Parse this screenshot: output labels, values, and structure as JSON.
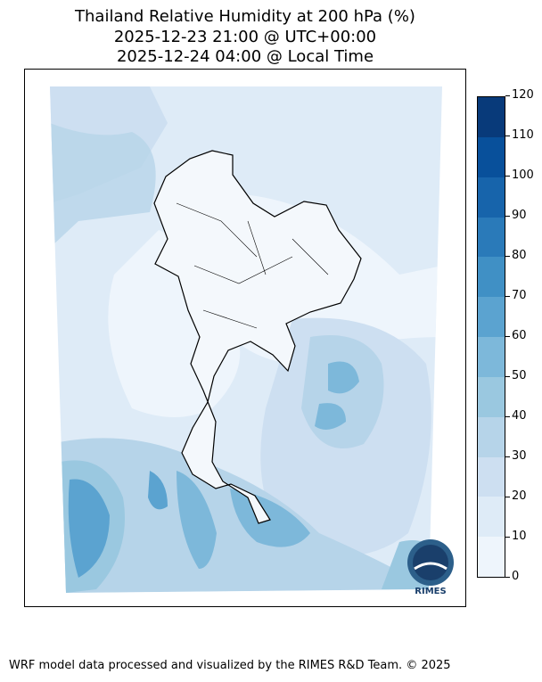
{
  "title": {
    "line1": "Thailand Relative Humidity at 200 hPa (%)",
    "line2": "2025-12-23 21:00 @ UTC+00:00",
    "line3": "2025-12-24 04:00 @ Local Time"
  },
  "colorbar": {
    "ticks": [
      "0",
      "10",
      "20",
      "30",
      "40",
      "50",
      "60",
      "70",
      "80",
      "90",
      "100",
      "110",
      "120"
    ],
    "levels": [
      0,
      10,
      20,
      30,
      40,
      50,
      60,
      70,
      80,
      90,
      100,
      110,
      120
    ],
    "colors": [
      "#eef5fc",
      "#deebf7",
      "#cddff1",
      "#b6d4e9",
      "#9ac8e0",
      "#7db8da",
      "#5ba3d0",
      "#4090c5",
      "#2a7ab9",
      "#1764ab",
      "#08509b",
      "#083a7a"
    ]
  },
  "logo": {
    "text": "RIMES"
  },
  "footer": "WRF model data processed and visualized by the RIMES R&D Team. © 2025"
}
